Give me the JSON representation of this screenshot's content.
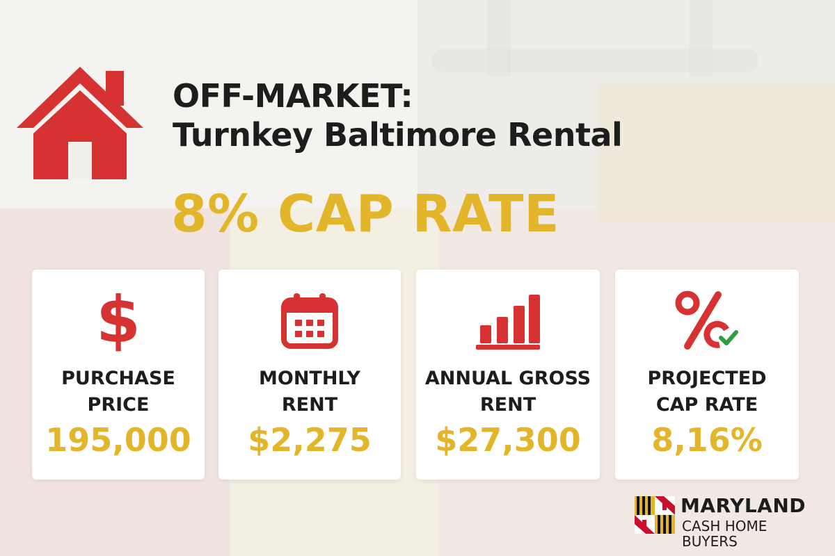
{
  "header": {
    "title_line1": "OFF-MARKET:",
    "title_line2": "Turnkey Baltimore Rental",
    "headline": "8% CAP RATE"
  },
  "cards": [
    {
      "icon": "dollar-icon",
      "label_line1": "PURCHASE",
      "label_line2": "PRICE",
      "value": "195,000"
    },
    {
      "icon": "calendar-icon",
      "label_line1": "MONTHLY",
      "label_line2": "RENT",
      "value": "$2,275"
    },
    {
      "icon": "bar-chart-icon",
      "label_line1": "ANNUAL GROSS",
      "label_line2": "RENT",
      "value": "$27,300"
    },
    {
      "icon": "percent-check-icon",
      "label_line1": "PROJECTED",
      "label_line2": "CAP RATE",
      "value": "8,16%"
    }
  ],
  "logo": {
    "name": "MARYLAND",
    "tagline": "CASH HOME BUYERS"
  },
  "colors": {
    "accent_red": "#d63232",
    "accent_gold": "#e3b52a",
    "text_dark": "#1d1d1d",
    "check_green": "#2e9e3f"
  },
  "dollar_symbol": "$"
}
